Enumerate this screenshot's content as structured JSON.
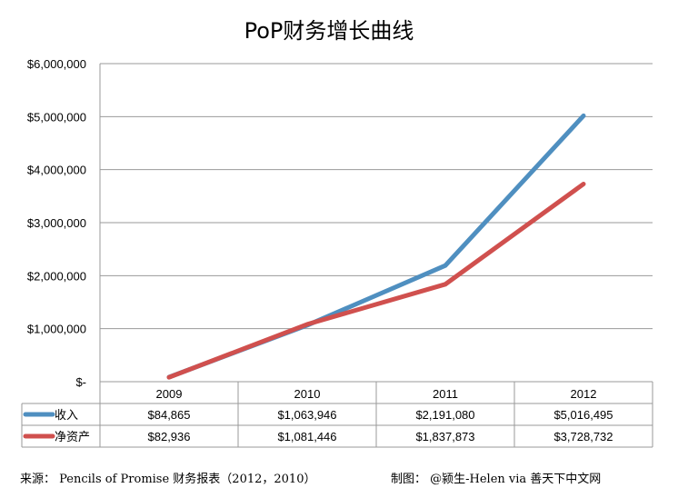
{
  "chart_data": {
    "type": "line",
    "title": "PoP财务增长曲线",
    "categories": [
      "2009",
      "2010",
      "2011",
      "2012"
    ],
    "ylim": [
      0,
      6000000
    ],
    "y_ticks": [
      0,
      1000000,
      2000000,
      3000000,
      4000000,
      5000000,
      6000000
    ],
    "y_tick_labels": [
      "$-",
      "$1,000,000",
      "$2,000,000",
      "$3,000,000",
      "$4,000,000",
      "$5,000,000",
      "$6,000,000"
    ],
    "grid": true,
    "series": [
      {
        "name": "收入",
        "color": "#4f8fc0",
        "values": [
          84865,
          1063946,
          2191080,
          5016495
        ],
        "labels": [
          "$84,865",
          "$1,063,946",
          "$2,191,080",
          "$5,016,495"
        ]
      },
      {
        "name": "净资产",
        "color": "#d0504e",
        "values": [
          82936,
          1081446,
          1837873,
          3728732
        ],
        "labels": [
          "$82,936",
          "$1,081,446",
          "$1,837,873",
          "$3,728,732"
        ]
      }
    ]
  },
  "footer": {
    "source": "来源： Pencils of Promise 财务报表（2012，2010）",
    "credit": "制图： @颍生-Helen via 善天下中文网"
  }
}
